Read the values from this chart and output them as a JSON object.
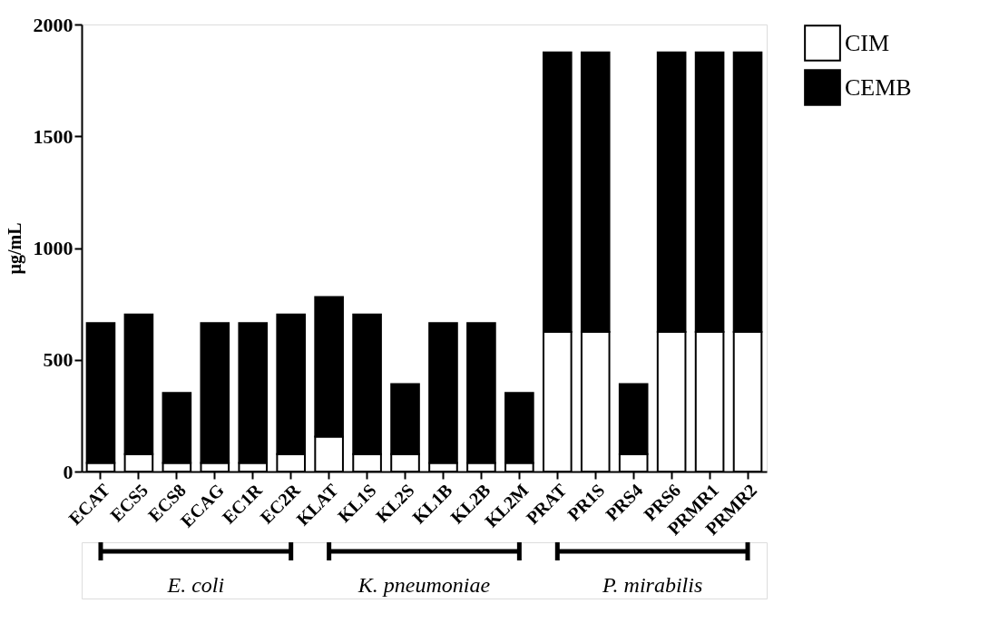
{
  "chart_data": {
    "type": "bar",
    "stacked": true,
    "ylabel": "µg/mL",
    "categories": [
      "ECAT",
      "ECS5",
      "ECS8",
      "ECAG",
      "EC1R",
      "EC2R",
      "KLAT",
      "KL1S",
      "KL2S",
      "KL1B",
      "KL2B",
      "KL2M",
      "PRAT",
      "PR1S",
      "PRS4",
      "PRS6",
      "PRMR1",
      "PRMR2"
    ],
    "series": [
      {
        "name": "CIM",
        "color": "#ffffff",
        "values": [
          39,
          78,
          39,
          39,
          39,
          78,
          156,
          78,
          78,
          39,
          39,
          39,
          625,
          625,
          78,
          625,
          625,
          625
        ]
      },
      {
        "name": "CEMB",
        "color": "#000000",
        "values": [
          625,
          625,
          313,
          625,
          625,
          625,
          625,
          625,
          313,
          625,
          625,
          313,
          1250,
          1250,
          313,
          1250,
          1250,
          1250
        ]
      }
    ],
    "ylim": [
      0,
      2000
    ],
    "yticks": [
      0,
      500,
      1000,
      1500,
      2000
    ],
    "grid": false,
    "legend": "top right",
    "annotations": [
      "E. coli",
      "K. pneumoniae",
      "P. mirabilis"
    ]
  }
}
